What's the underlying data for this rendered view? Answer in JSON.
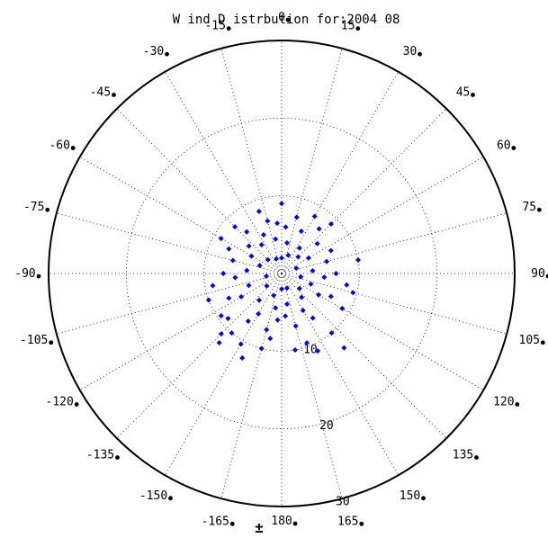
{
  "chart_data": {
    "type": "scatter",
    "coordinate_system": "polar",
    "title": "W ind D istrbution for:2004 08",
    "angle_direction": "clockwise from top",
    "angle_tick_labels": [
      "0",
      "15",
      "30",
      "45",
      "60",
      "75",
      "90",
      "105",
      "120",
      "135",
      "150",
      "165",
      "180",
      "-165",
      "-150",
      "-135",
      "-120",
      "-105",
      "-90",
      "-75",
      "-60",
      "-45",
      "-30",
      "-15"
    ],
    "radius_tick_labels": [
      "10",
      "20",
      "30"
    ],
    "radius_range": [
      0,
      30
    ],
    "bottom_marker": "±",
    "grid": true,
    "marker_color": "#0000ff",
    "marker": "diamond",
    "series": [
      {
        "points": [
          {
            "angle": 0,
            "r": 2
          },
          {
            "angle": 20,
            "r": 2.5
          },
          {
            "angle": -20,
            "r": 2
          },
          {
            "angle": 45,
            "r": 3
          },
          {
            "angle": -45,
            "r": 2.5
          },
          {
            "angle": 70,
            "r": 2
          },
          {
            "angle": -70,
            "r": 3
          },
          {
            "angle": 100,
            "r": 2.5
          },
          {
            "angle": -100,
            "r": 2
          },
          {
            "angle": 130,
            "r": 3
          },
          {
            "angle": -130,
            "r": 2.5
          },
          {
            "angle": 160,
            "r": 2
          },
          {
            "angle": -160,
            "r": 3
          },
          {
            "angle": 180,
            "r": 2
          },
          {
            "angle": 10,
            "r": 4
          },
          {
            "angle": -10,
            "r": 4.5
          },
          {
            "angle": 35,
            "r": 4
          },
          {
            "angle": -35,
            "r": 4.5
          },
          {
            "angle": 60,
            "r": 4
          },
          {
            "angle": -60,
            "r": 4.5
          },
          {
            "angle": 85,
            "r": 4
          },
          {
            "angle": -85,
            "r": 4.5
          },
          {
            "angle": 110,
            "r": 4
          },
          {
            "angle": -110,
            "r": 4.5
          },
          {
            "angle": 140,
            "r": 4
          },
          {
            "angle": -140,
            "r": 4.5
          },
          {
            "angle": 170,
            "r": 4
          },
          {
            "angle": -170,
            "r": 4.5
          },
          {
            "angle": 5,
            "r": 6
          },
          {
            "angle": -5,
            "r": 6.5
          },
          {
            "angle": 25,
            "r": 6
          },
          {
            "angle": -25,
            "r": 5.5
          },
          {
            "angle": 50,
            "r": 6
          },
          {
            "angle": -50,
            "r": 5.5
          },
          {
            "angle": 75,
            "r": 6
          },
          {
            "angle": -75,
            "r": 6.5
          },
          {
            "angle": 95,
            "r": 5.5
          },
          {
            "angle": -95,
            "r": 6
          },
          {
            "angle": 120,
            "r": 5.5
          },
          {
            "angle": -120,
            "r": 6
          },
          {
            "angle": 150,
            "r": 5.5
          },
          {
            "angle": -150,
            "r": 6
          },
          {
            "angle": 175,
            "r": 5.5
          },
          {
            "angle": -175,
            "r": 6
          },
          {
            "angle": 15,
            "r": 7.5
          },
          {
            "angle": -15,
            "r": 7
          },
          {
            "angle": 40,
            "r": 7.5
          },
          {
            "angle": -40,
            "r": 7
          },
          {
            "angle": 65,
            "r": 7
          },
          {
            "angle": -65,
            "r": 7.5
          },
          {
            "angle": 90,
            "r": 7
          },
          {
            "angle": -90,
            "r": 7.5
          },
          {
            "angle": 115,
            "r": 7
          },
          {
            "angle": -115,
            "r": 7.5
          },
          {
            "angle": 145,
            "r": 7
          },
          {
            "angle": -145,
            "r": 7.5
          },
          {
            "angle": 165,
            "r": 7
          },
          {
            "angle": -165,
            "r": 7.5
          },
          {
            "angle": -130,
            "r": 9
          },
          {
            "angle": -140,
            "r": 10
          },
          {
            "angle": -135,
            "r": 11
          },
          {
            "angle": -138,
            "r": 12
          },
          {
            "angle": -125,
            "r": 9.5
          },
          {
            "angle": -150,
            "r": 10.5
          },
          {
            "angle": -155,
            "r": 12
          },
          {
            "angle": -165,
            "r": 10
          },
          {
            "angle": 170,
            "r": 10
          },
          {
            "angle": 160,
            "r": 9.5
          },
          {
            "angle": 155,
            "r": 11
          },
          {
            "angle": 140,
            "r": 10
          },
          {
            "angle": 140,
            "r": 12.5
          },
          {
            "angle": 120,
            "r": 9
          },
          {
            "angle": 80,
            "r": 10
          },
          {
            "angle": 45,
            "r": 9
          },
          {
            "angle": 30,
            "r": 8.5
          },
          {
            "angle": 0,
            "r": 9
          },
          {
            "angle": -20,
            "r": 8.5
          },
          {
            "angle": -45,
            "r": 8.5
          },
          {
            "angle": -60,
            "r": 9
          },
          {
            "angle": -100,
            "r": 9
          },
          {
            "angle": -110,
            "r": 10
          },
          {
            "angle": 100,
            "r": 8.5
          },
          {
            "angle": 105,
            "r": 9.5
          },
          {
            "angle": -170,
            "r": 8.5
          }
        ]
      }
    ]
  }
}
